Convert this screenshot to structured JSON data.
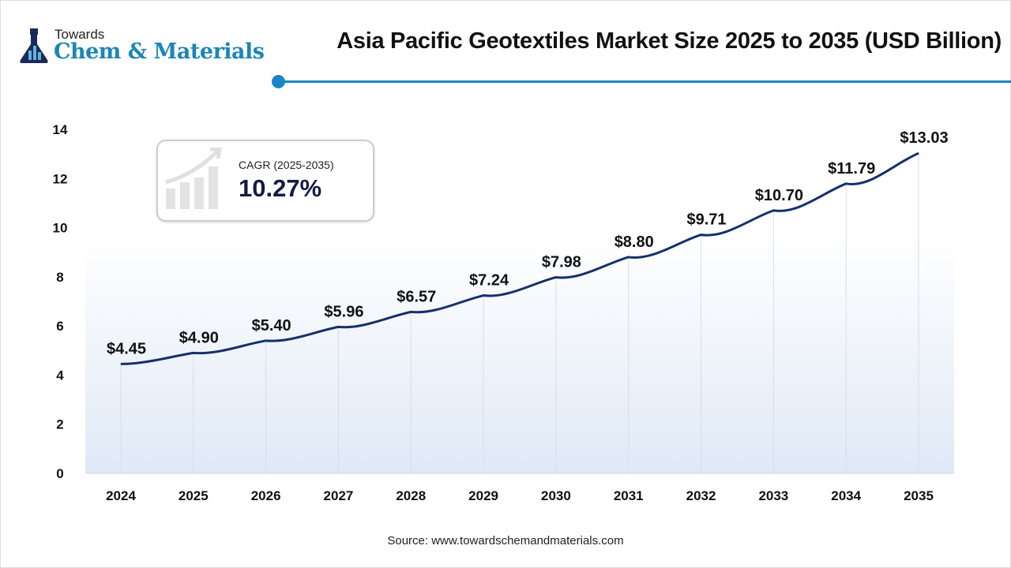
{
  "logo": {
    "towards": "Towards",
    "brand": "Chem & Materials"
  },
  "chart_data": {
    "type": "line",
    "title": "Asia Pacific Geotextiles Market Size 2025 to 2035 (USD Billion)",
    "categories": [
      "2024",
      "2025",
      "2026",
      "2027",
      "2028",
      "2029",
      "2030",
      "2031",
      "2032",
      "2033",
      "2034",
      "2035"
    ],
    "values": [
      4.45,
      4.9,
      5.4,
      5.96,
      6.57,
      7.24,
      7.98,
      8.8,
      9.71,
      10.7,
      11.79,
      13.03
    ],
    "data_labels": [
      "$4.45",
      "$4.90",
      "$5.40",
      "$5.96",
      "$6.57",
      "$7.24",
      "$7.98",
      "$8.80",
      "$9.71",
      "$10.70",
      "$11.79",
      "$13.03"
    ],
    "yticks": [
      "0",
      "2",
      "4",
      "6",
      "8",
      "10",
      "12",
      "14"
    ],
    "ylim": [
      0,
      14
    ],
    "xlabel": "",
    "ylabel": "",
    "line_color": "#15306b",
    "grid": "vertical"
  },
  "cagr": {
    "label": "CAGR (2025-2035)",
    "value": "10.27%"
  },
  "source": "Source: www.towardschemandmaterials.com"
}
